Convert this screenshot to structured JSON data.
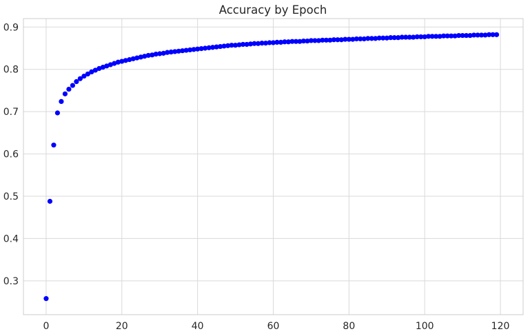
{
  "chart_data": {
    "type": "scatter",
    "title": "Accuracy by Epoch",
    "xlabel": "",
    "ylabel": "",
    "xlim": [
      -6,
      126
    ],
    "ylim": [
      0.22,
      0.92
    ],
    "xticks": [
      0,
      20,
      40,
      60,
      80,
      100,
      120
    ],
    "yticks": [
      0.3,
      0.4,
      0.5,
      0.6,
      0.7,
      0.8,
      0.9
    ],
    "grid": true,
    "marker_color": "#0000ff",
    "series": [
      {
        "x": [
          0,
          1,
          2,
          3,
          4,
          5,
          6,
          7,
          8,
          9,
          10,
          11,
          12,
          13,
          14,
          15,
          16,
          17,
          18,
          19,
          20,
          21,
          22,
          23,
          24,
          25,
          26,
          27,
          28,
          29,
          30,
          31,
          32,
          33,
          34,
          35,
          36,
          37,
          38,
          39,
          40,
          41,
          42,
          43,
          44,
          45,
          46,
          47,
          48,
          49,
          50,
          51,
          52,
          53,
          54,
          55,
          56,
          57,
          58,
          59,
          60,
          61,
          62,
          63,
          64,
          65,
          66,
          67,
          68,
          69,
          70,
          71,
          72,
          73,
          74,
          75,
          76,
          77,
          78,
          79,
          80,
          81,
          82,
          83,
          84,
          85,
          86,
          87,
          88,
          89,
          90,
          91,
          92,
          93,
          94,
          95,
          96,
          97,
          98,
          99,
          100,
          101,
          102,
          103,
          104,
          105,
          106,
          107,
          108,
          109,
          110,
          111,
          112,
          113,
          114,
          115,
          116,
          117,
          118,
          119
        ],
        "values": [
          0.258,
          0.488,
          0.621,
          0.697,
          0.724,
          0.742,
          0.753,
          0.762,
          0.771,
          0.778,
          0.784,
          0.789,
          0.794,
          0.798,
          0.802,
          0.805,
          0.808,
          0.811,
          0.814,
          0.817,
          0.819,
          0.821,
          0.823,
          0.825,
          0.827,
          0.829,
          0.831,
          0.833,
          0.834,
          0.836,
          0.837,
          0.838,
          0.84,
          0.841,
          0.842,
          0.843,
          0.844,
          0.845,
          0.846,
          0.847,
          0.848,
          0.849,
          0.85,
          0.851,
          0.852,
          0.853,
          0.854,
          0.855,
          0.856,
          0.857,
          0.857,
          0.858,
          0.859,
          0.859,
          0.86,
          0.861,
          0.861,
          0.862,
          0.862,
          0.863,
          0.863,
          0.864,
          0.864,
          0.865,
          0.865,
          0.866,
          0.866,
          0.866,
          0.867,
          0.867,
          0.868,
          0.868,
          0.868,
          0.869,
          0.869,
          0.869,
          0.87,
          0.87,
          0.87,
          0.871,
          0.871,
          0.871,
          0.872,
          0.872,
          0.872,
          0.873,
          0.873,
          0.873,
          0.874,
          0.874,
          0.874,
          0.875,
          0.875,
          0.875,
          0.876,
          0.876,
          0.876,
          0.876,
          0.877,
          0.877,
          0.877,
          0.878,
          0.878,
          0.878,
          0.878,
          0.879,
          0.879,
          0.879,
          0.879,
          0.88,
          0.88,
          0.88,
          0.88,
          0.881,
          0.881,
          0.881,
          0.881,
          0.882,
          0.882,
          0.882
        ]
      }
    ]
  }
}
